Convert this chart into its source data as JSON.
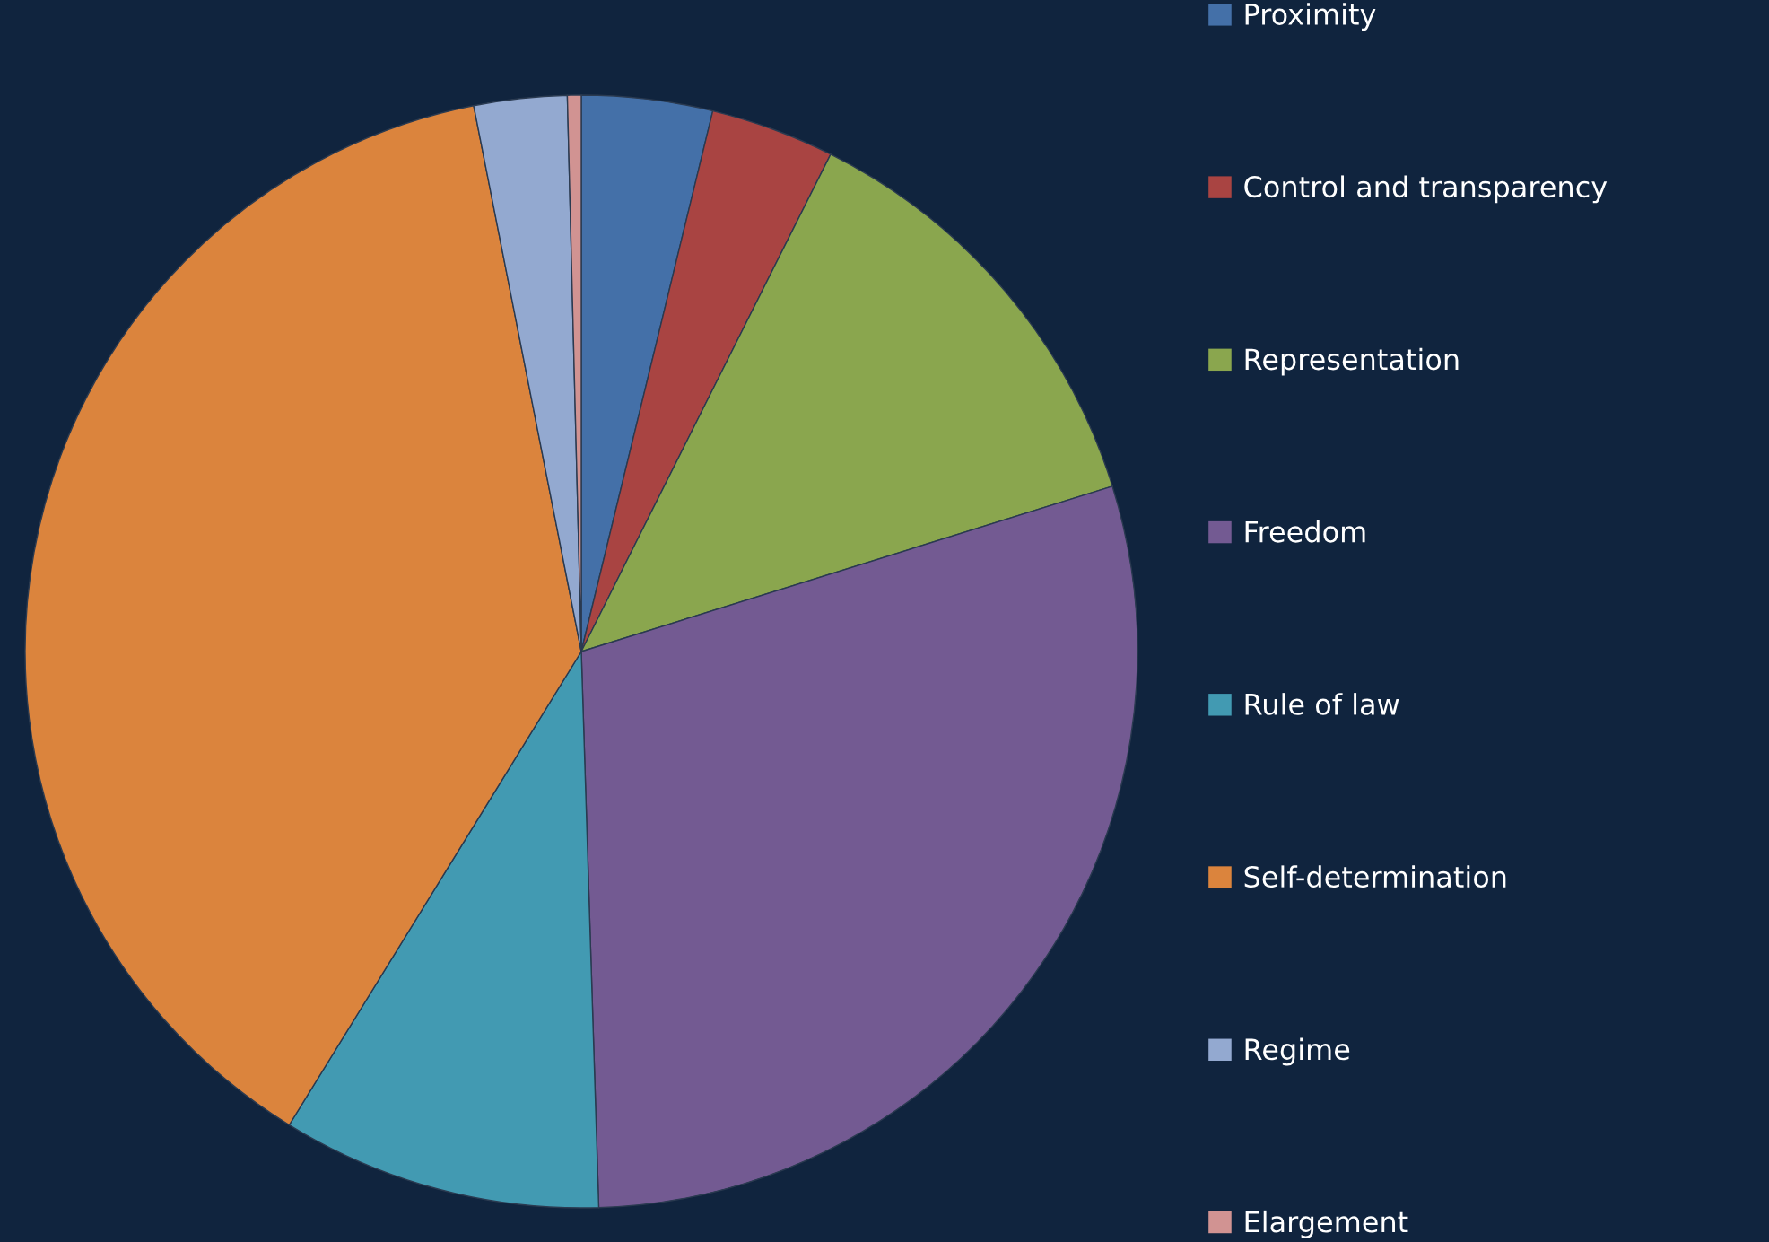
{
  "chart_data": {
    "type": "pie",
    "categories": [
      "Proximity",
      "Control and transparency",
      "Representation",
      "Freedom",
      "Rule of law",
      "Self-determination",
      "Regime",
      "Elargement"
    ],
    "values": [
      3.8,
      3.6,
      12.8,
      29.3,
      9.3,
      38.1,
      2.7,
      0.4
    ],
    "colors": [
      "#4470a8",
      "#a94442",
      "#8aa64e",
      "#735a92",
      "#429ab2",
      "#db843d",
      "#93a9d0",
      "#d19392"
    ],
    "legend": "right"
  }
}
